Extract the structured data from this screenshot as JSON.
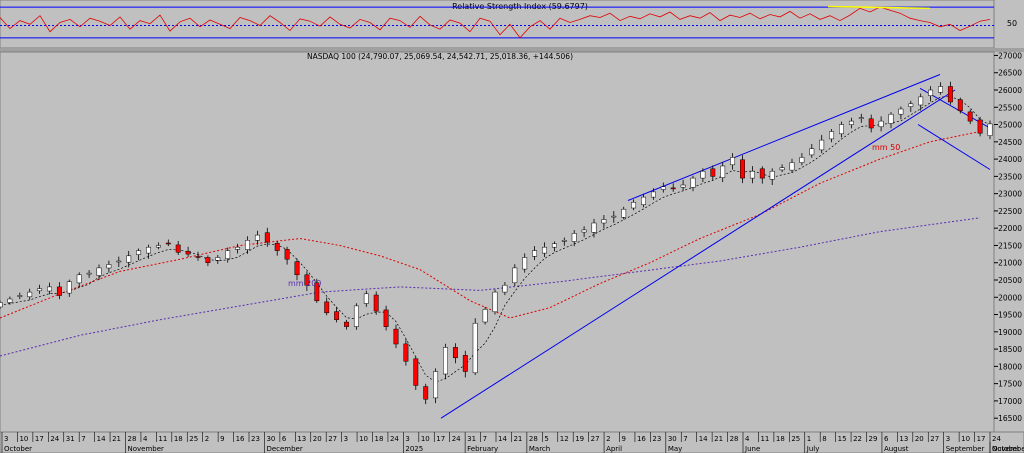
{
  "rsi_panel": {
    "title": "Relative Strength Index (59.6797)",
    "level_label": "50",
    "colors": {
      "line": "#e00000",
      "bounds": "#0000ff"
    }
  },
  "price_panel": {
    "title": "NASDAQ 100 (24,790.07, 25,069.54, 24,542.71, 25,018.36, +144.506)",
    "annotations": {
      "ma50": "mm 50",
      "ma200": "mm 200"
    },
    "colors": {
      "background": "#c0c0c0",
      "up_candle": "#ffffff",
      "down_candle": "#ff0000",
      "ma_short": "#000000",
      "ma50": "#dd0000",
      "ma200": "#5a2db0",
      "trendlines": "#0000ee"
    }
  },
  "chart_data": [
    {
      "type": "line",
      "title": "Relative Strength Index (59.6797)",
      "yticks": [
        50
      ],
      "ylim": [
        20,
        85
      ],
      "series": [
        {
          "name": "Relative Strength Index",
          "values": [
            63,
            45,
            58,
            52,
            66,
            40,
            55,
            60,
            48,
            62,
            57,
            50,
            64,
            44,
            58,
            53,
            67,
            41,
            56,
            62,
            48,
            59,
            52,
            45,
            63,
            58,
            50,
            66,
            55,
            42,
            61,
            57,
            49,
            64,
            52,
            46,
            60,
            55,
            43,
            62,
            58,
            47,
            65,
            51,
            44,
            59,
            54,
            40,
            62,
            57,
            35,
            52,
            30,
            48,
            58,
            44,
            62,
            55,
            60,
            66,
            63,
            70,
            58,
            65,
            61,
            69,
            64,
            72,
            60,
            66,
            62,
            71,
            58,
            67,
            63,
            70,
            61,
            68,
            64,
            73,
            62,
            69,
            60,
            66,
            58,
            67,
            78,
            72,
            80,
            75,
            70,
            62,
            58,
            55,
            48,
            52,
            42,
            49,
            57,
            60
          ]
        }
      ]
    },
    {
      "type": "candlestick",
      "title": "NASDAQ 100 (24,790.07, 25,069.54, 24,542.71, 25,018.36, +144.506)",
      "last_bar": {
        "open": 24790.07,
        "high": 25069.54,
        "low": 24542.71,
        "close": 25018.36,
        "change": 144.506
      },
      "ylim": [
        16100,
        27100
      ],
      "yticks": [
        16500,
        17000,
        17500,
        18000,
        18500,
        19000,
        19500,
        20000,
        20500,
        21000,
        21500,
        22000,
        22500,
        23000,
        23500,
        24000,
        24500,
        25000,
        25500,
        26000,
        26500,
        27000
      ],
      "x_labels": [
        "3",
        "10",
        "17",
        "24",
        "31",
        "7",
        "14",
        "21",
        "28",
        "4",
        "11",
        "18",
        "25",
        "2",
        "9",
        "16",
        "23",
        "30",
        "6",
        "13",
        "20",
        "27",
        "3",
        "10",
        "18",
        "24",
        "3",
        "10",
        "17",
        "24",
        "31",
        "7",
        "14",
        "21",
        "28",
        "5",
        "12",
        "19",
        "27",
        "2",
        "9",
        "16",
        "23",
        "30",
        "7",
        "14",
        "21",
        "28",
        "4",
        "11",
        "18",
        "25",
        "1",
        "8",
        "15",
        "22",
        "29",
        "6",
        "13",
        "20",
        "27",
        "3",
        "10",
        "17",
        "24"
      ],
      "months": [
        "October",
        "November",
        "December",
        "2025",
        "February",
        "March",
        "April",
        "May",
        "June",
        "July",
        "August",
        "September",
        "October",
        "November"
      ],
      "closes": [
        19850,
        19950,
        20050,
        20150,
        20250,
        20300,
        20050,
        20450,
        20650,
        20700,
        20850,
        20950,
        21050,
        21200,
        21350,
        21450,
        21500,
        21550,
        21300,
        21250,
        21150,
        21000,
        21150,
        21350,
        21450,
        21650,
        21800,
        21600,
        21350,
        21100,
        20650,
        20350,
        19900,
        19550,
        19350,
        19150,
        19750,
        20100,
        19600,
        19150,
        18650,
        18150,
        17450,
        17050,
        17850,
        18550,
        18250,
        17850,
        19250,
        19650,
        20150,
        20350,
        20850,
        21150,
        21350,
        21450,
        21550,
        21650,
        21850,
        21950,
        22150,
        22250,
        22350,
        22550,
        22750,
        22900,
        23050,
        23200,
        23150,
        23250,
        23450,
        23650,
        23500,
        23800,
        24050,
        23450,
        23650,
        23450,
        23650,
        23750,
        23900,
        24050,
        24300,
        24550,
        24800,
        25000,
        25100,
        25200,
        24900,
        25100,
        25300,
        25450,
        25600,
        25800,
        26000,
        26100,
        25650,
        25400,
        25100,
        24750,
        25018
      ],
      "ma50_points": [
        [
          0,
          19400
        ],
        [
          60,
          20100
        ],
        [
          120,
          20750
        ],
        [
          180,
          21100
        ],
        [
          240,
          21500
        ],
        [
          300,
          21700
        ],
        [
          340,
          21500
        ],
        [
          380,
          21200
        ],
        [
          420,
          20800
        ],
        [
          470,
          19900
        ],
        [
          510,
          19400
        ],
        [
          550,
          19700
        ],
        [
          600,
          20400
        ],
        [
          650,
          21000
        ],
        [
          700,
          21700
        ],
        [
          760,
          22400
        ],
        [
          820,
          23300
        ],
        [
          880,
          24000
        ],
        [
          930,
          24500
        ],
        [
          980,
          24800
        ]
      ],
      "ma200_points": [
        [
          0,
          18300
        ],
        [
          80,
          18900
        ],
        [
          160,
          19350
        ],
        [
          240,
          19750
        ],
        [
          320,
          20150
        ],
        [
          400,
          20300
        ],
        [
          480,
          20200
        ],
        [
          560,
          20450
        ],
        [
          640,
          20750
        ],
        [
          720,
          21050
        ],
        [
          800,
          21450
        ],
        [
          880,
          21900
        ],
        [
          980,
          22300
        ]
      ],
      "trendlines": [
        {
          "name": "support",
          "from": [
            441,
            16500
          ],
          "to": [
            955,
            26000
          ]
        },
        {
          "name": "upper channel",
          "from": [
            628,
            22800
          ],
          "to": [
            940,
            26450
          ]
        },
        {
          "name": "falling channel upper",
          "from": [
            920,
            26050
          ],
          "to": [
            990,
            24900
          ]
        },
        {
          "name": "falling channel lower",
          "from": [
            918,
            25000
          ],
          "to": [
            990,
            23700
          ]
        }
      ]
    }
  ]
}
